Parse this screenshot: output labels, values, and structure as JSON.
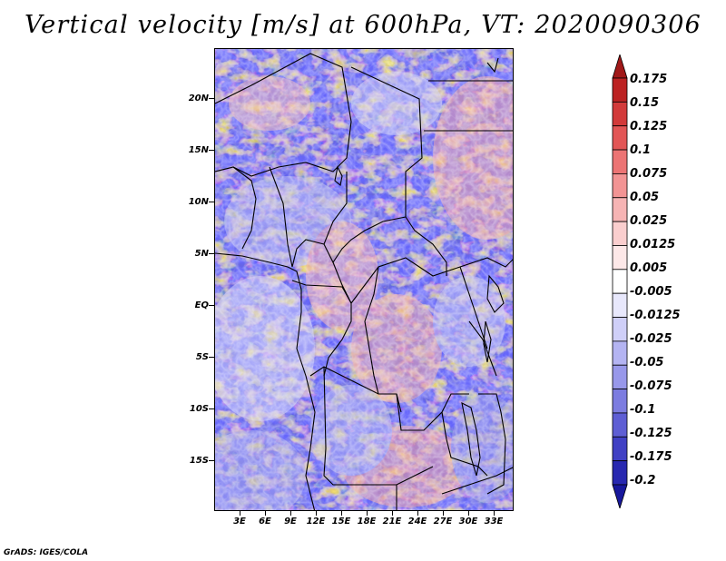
{
  "title": "Vertical velocity [m/s] at 600hPa, VT: 2020090306",
  "credit": "GrADS: IGES/COLA",
  "y_axis": {
    "labels": [
      "20N",
      "15N",
      "10N",
      "5N",
      "EQ",
      "5S",
      "10S",
      "15S"
    ]
  },
  "x_axis": {
    "labels": [
      "3E",
      "6E",
      "9E",
      "12E",
      "15E",
      "18E",
      "21E",
      "24E",
      "27E",
      "30E",
      "33E"
    ]
  },
  "colorbar": {
    "levels": [
      "0.175",
      "0.15",
      "0.125",
      "0.1",
      "0.075",
      "0.05",
      "0.025",
      "0.0125",
      "0.005",
      "-0.005",
      "-0.0125",
      "-0.025",
      "-0.05",
      "-0.075",
      "-0.1",
      "-0.125",
      "-0.175",
      "-0.2"
    ],
    "colors": [
      "#a01818",
      "#bc2222",
      "#d23a3a",
      "#e25656",
      "#ec7474",
      "#f29494",
      "#f6b4b4",
      "#facece",
      "#fde8e8",
      "#ffffff",
      "#e8e8fc",
      "#cfcff8",
      "#b4b4f2",
      "#9898ea",
      "#7c7ce0",
      "#5e5ed4",
      "#4040c4",
      "#2828b0",
      "#18189c"
    ]
  }
}
